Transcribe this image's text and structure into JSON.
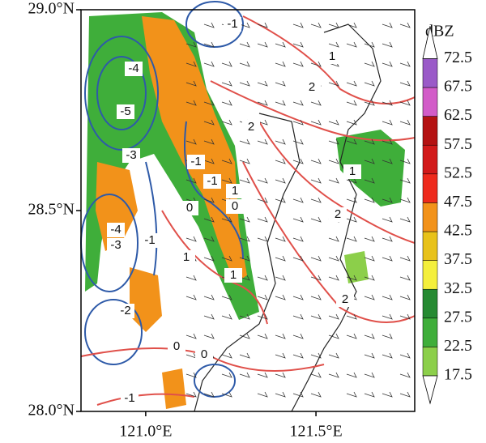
{
  "map": {
    "xlim": [
      120.81,
      121.79
    ],
    "ylim": [
      28.0,
      29.0
    ],
    "lat_ticks": [
      {
        "value": 29.0,
        "label": "29.0°N"
      },
      {
        "value": 28.5,
        "label": "28.5°N"
      },
      {
        "value": 28.0,
        "label": "28.0°N"
      }
    ],
    "lon_ticks": [
      {
        "value": 121.0,
        "label": "121.0°E"
      },
      {
        "value": 121.5,
        "label": "121.5°E"
      }
    ],
    "colorbar": {
      "title": "dBZ",
      "levels": [
        17.5,
        22.5,
        27.5,
        32.5,
        37.5,
        42.5,
        47.5,
        52.5,
        57.5,
        62.5,
        67.5,
        72.5
      ],
      "colors": [
        "#8ccf4a",
        "#3fae3a",
        "#268a32",
        "#f4ef3c",
        "#e8c21a",
        "#f2921a",
        "#ee2a1c",
        "#d21a1a",
        "#b41212",
        "#d25cc8",
        "#9a5ac8"
      ]
    },
    "contour_labels": [
      "-4",
      "-5",
      "-3",
      "-1",
      "-1",
      "-4",
      "-3",
      "-1",
      "-2",
      "0",
      "0",
      "1",
      "1",
      "1",
      "-1",
      "1",
      "2",
      "2",
      "1",
      "2",
      "2",
      "0",
      "0",
      "-1"
    ]
  }
}
